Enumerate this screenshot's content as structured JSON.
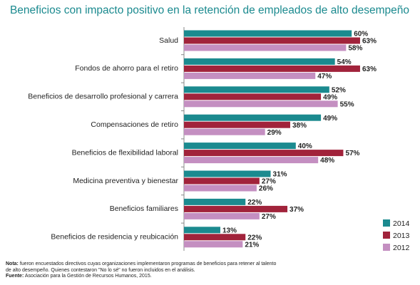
{
  "chart_data": {
    "type": "bar",
    "orientation": "horizontal",
    "title": "Beneficios con impacto positivo en la retención de empleados de alto desempeño",
    "categories": [
      "Salud",
      "Fondos de ahorro para el retiro",
      "Beneficios de desarrollo profesional y carrera",
      "Compensaciones de retiro",
      "Beneficios de flexibilidad laboral",
      "Medicina preventiva y bienestar",
      "Beneficios familiares",
      "Beneficios de residencia y reubicación"
    ],
    "series": [
      {
        "name": "2014",
        "color": "#1b8a8f",
        "values": [
          60,
          54,
          52,
          49,
          40,
          31,
          22,
          13
        ],
        "value_labels": [
          "60%",
          "54%",
          "52%",
          "49%",
          "40%",
          "31%",
          "22%",
          "13%"
        ]
      },
      {
        "name": "2013",
        "color": "#a1233b",
        "values": [
          63,
          63,
          49,
          38,
          57,
          27,
          37,
          22
        ],
        "value_labels": [
          "63%",
          "63%",
          "49%",
          "38%",
          "57%",
          "27%",
          "37%",
          "22%"
        ]
      },
      {
        "name": "2012",
        "color": "#c48fc1",
        "values": [
          58,
          47,
          55,
          29,
          48,
          26,
          27,
          21
        ],
        "value_labels": [
          "58%",
          "47%",
          "55%",
          "29%",
          "48%",
          "26%",
          "27%",
          "21%"
        ]
      }
    ],
    "legend": "bottom-right"
  },
  "notes": {
    "note_label": "Nota:",
    "note_text": "fueron encuestados directivos cuyas organizaciones implementaron programas de beneficios para retener al talento de alto desempeño. Quienes contestaron \"No lo sé\" no fueron incluidos en el análisis.",
    "source_label": "Fuente:",
    "source_text": "Asociación para la Gestión de Recursos Humanos, 2015."
  }
}
